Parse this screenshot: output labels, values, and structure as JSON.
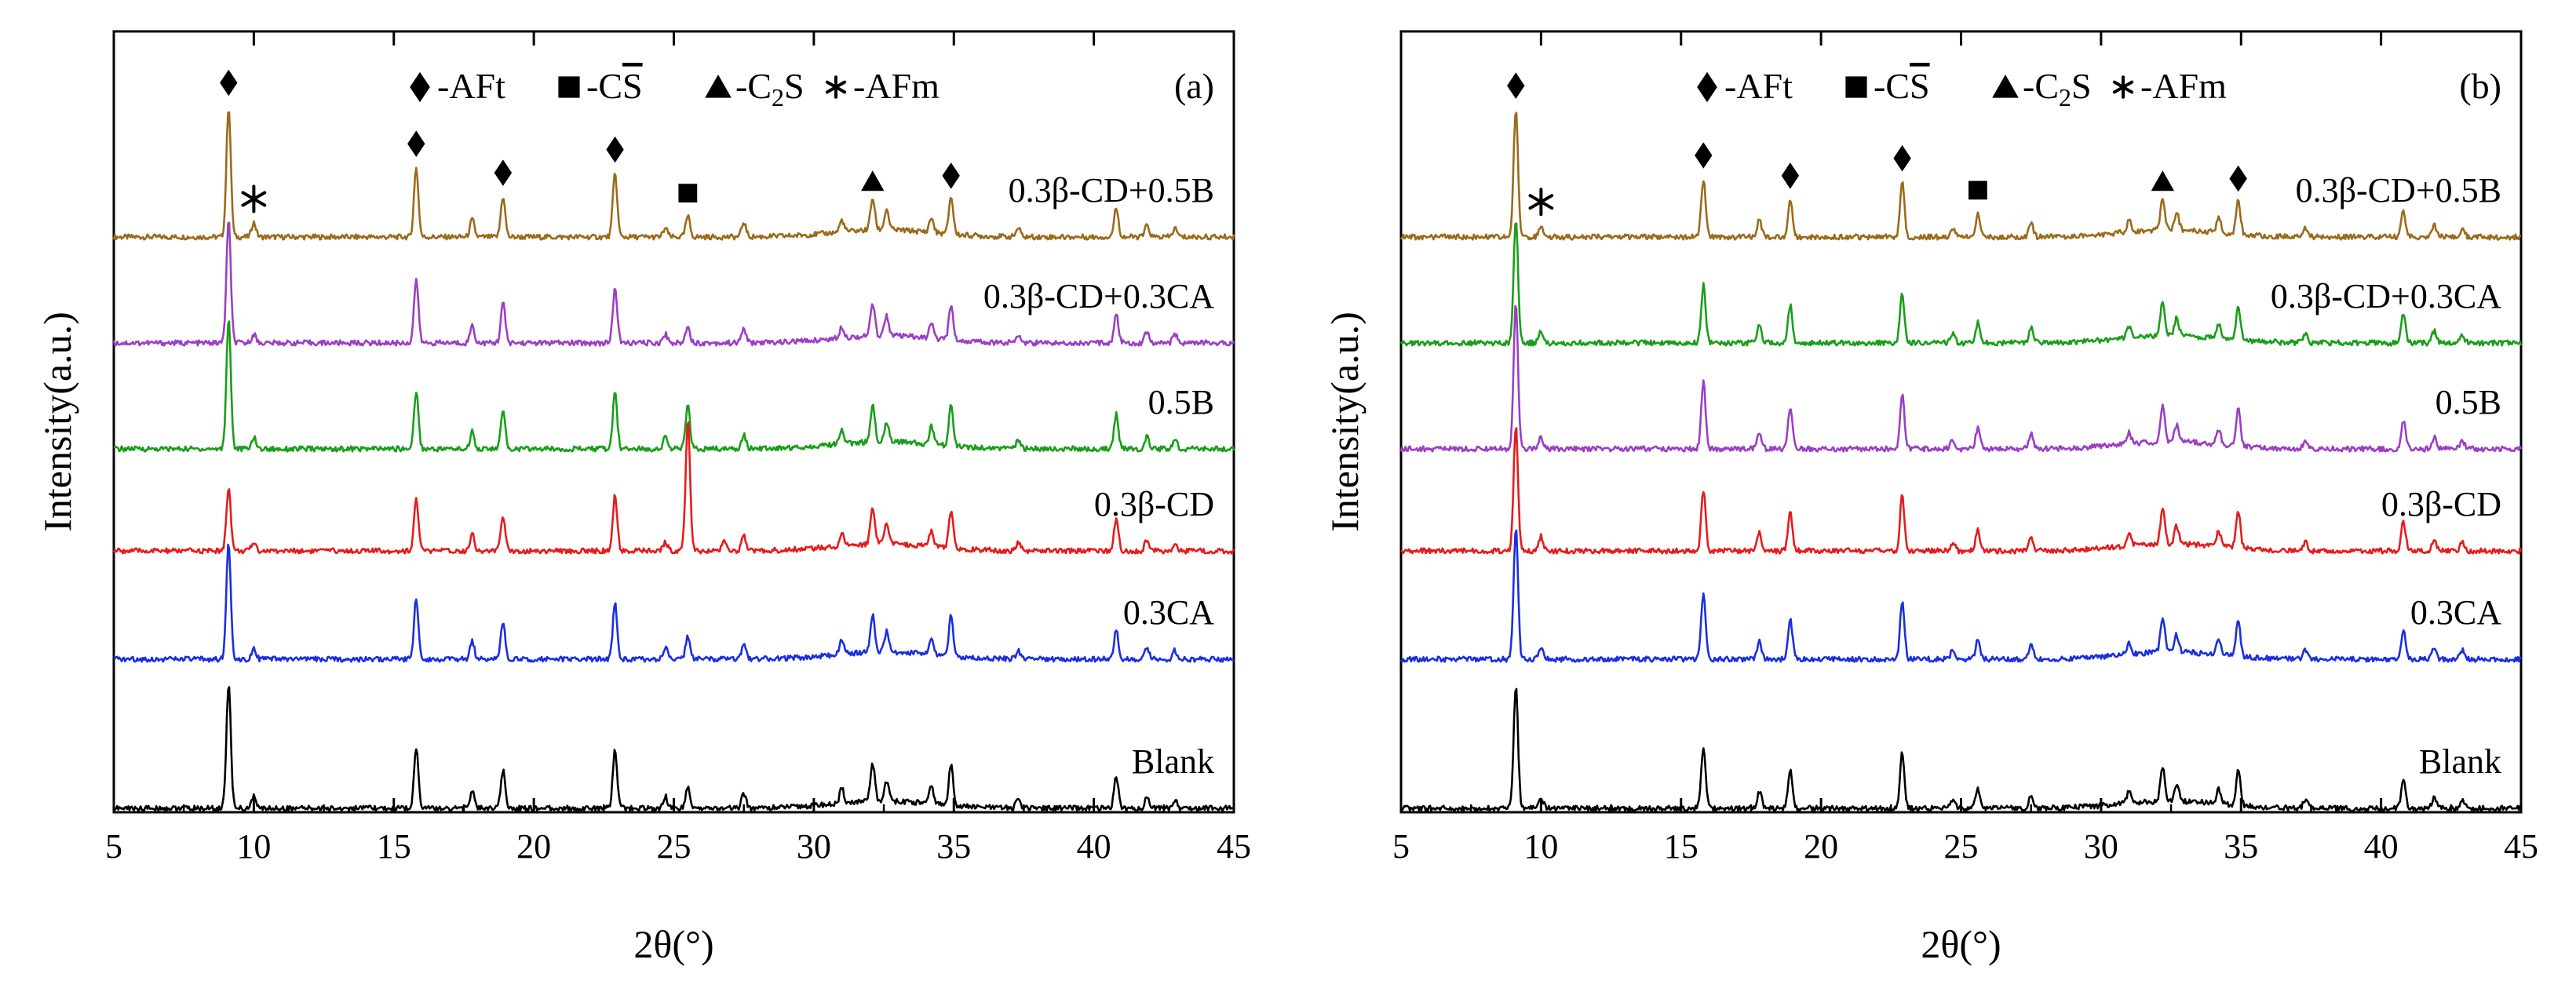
{
  "chart_data": [
    {
      "type": "line",
      "panel_label": "(a)",
      "xlabel": "2θ(°)",
      "ylabel": "Intensity(a.u.)",
      "xlim": [
        5,
        45
      ],
      "xticks": [
        5,
        10,
        15,
        20,
        25,
        30,
        35,
        40,
        45
      ],
      "y_ticks_shown": false,
      "legend": {
        "placement": "top-center",
        "entries": [
          {
            "marker": "diamond",
            "label": "-AFt"
          },
          {
            "marker": "square",
            "label": "-C",
            "overline": "S",
            "suffix": ""
          },
          {
            "marker": "triangle",
            "label": "-C",
            "sub": "2",
            "suffix": "S"
          },
          {
            "marker": "asterisk",
            "label": "-AFm"
          }
        ]
      },
      "series": [
        {
          "name": "0.3β-CD+0.5B",
          "color": "#9b6b1a",
          "baseline": 10.0,
          "peaks": [
            [
              9.1,
              4.5
            ],
            [
              10.0,
              0.5
            ],
            [
              15.8,
              2.4
            ],
            [
              17.8,
              0.6
            ],
            [
              18.9,
              1.4
            ],
            [
              22.9,
              2.2
            ],
            [
              24.7,
              0.3
            ],
            [
              25.5,
              0.7
            ],
            [
              27.5,
              0.5
            ],
            [
              31.0,
              0.4
            ],
            [
              32.1,
              1.1
            ],
            [
              32.6,
              0.7
            ],
            [
              34.2,
              0.5
            ],
            [
              34.9,
              1.3
            ],
            [
              37.3,
              0.3
            ],
            [
              40.8,
              1.0
            ],
            [
              41.9,
              0.4
            ],
            [
              42.9,
              0.3
            ]
          ]
        },
        {
          "name": "0.3β-CD+0.3CA",
          "color": "#9b3fc4",
          "baseline": 8.0,
          "peaks": [
            [
              9.1,
              4.2
            ],
            [
              10.0,
              0.3
            ],
            [
              15.8,
              2.2
            ],
            [
              17.8,
              0.6
            ],
            [
              18.9,
              1.4
            ],
            [
              22.9,
              1.9
            ],
            [
              24.7,
              0.3
            ],
            [
              25.5,
              0.6
            ],
            [
              27.5,
              0.5
            ],
            [
              31.0,
              0.4
            ],
            [
              32.1,
              1.1
            ],
            [
              32.6,
              0.7
            ],
            [
              34.2,
              0.5
            ],
            [
              34.9,
              1.2
            ],
            [
              37.3,
              0.3
            ],
            [
              40.8,
              1.0
            ],
            [
              41.9,
              0.4
            ],
            [
              42.9,
              0.3
            ]
          ]
        },
        {
          "name": "0.5B",
          "color": "#1a9e1a",
          "baseline": 6.0,
          "peaks": [
            [
              9.1,
              4.5
            ],
            [
              10.0,
              0.4
            ],
            [
              15.8,
              2.0
            ],
            [
              17.8,
              0.6
            ],
            [
              18.9,
              1.3
            ],
            [
              22.9,
              1.9
            ],
            [
              24.7,
              0.4
            ],
            [
              25.5,
              1.5
            ],
            [
              27.5,
              0.5
            ],
            [
              31.0,
              0.5
            ],
            [
              32.1,
              1.3
            ],
            [
              32.6,
              0.7
            ],
            [
              34.2,
              0.6
            ],
            [
              34.9,
              1.4
            ],
            [
              37.3,
              0.3
            ],
            [
              40.8,
              1.2
            ],
            [
              41.9,
              0.4
            ],
            [
              42.9,
              0.3
            ]
          ]
        },
        {
          "name": "0.3β-CD",
          "color": "#e51c1c",
          "baseline": 4.0,
          "peaks": [
            [
              9.1,
              2.2
            ],
            [
              10.0,
              0.3
            ],
            [
              15.8,
              1.8
            ],
            [
              17.8,
              0.6
            ],
            [
              18.9,
              1.2
            ],
            [
              22.9,
              1.9
            ],
            [
              24.7,
              0.3
            ],
            [
              25.5,
              4.5
            ],
            [
              26.8,
              0.4
            ],
            [
              27.5,
              0.5
            ],
            [
              31.0,
              0.4
            ],
            [
              32.1,
              1.3
            ],
            [
              32.6,
              0.7
            ],
            [
              34.2,
              0.5
            ],
            [
              34.9,
              1.3
            ],
            [
              37.3,
              0.3
            ],
            [
              40.8,
              1.1
            ],
            [
              41.9,
              0.4
            ],
            [
              42.9,
              0.3
            ]
          ]
        },
        {
          "name": "0.3CA",
          "color": "#1a2fe0",
          "baseline": 2.0,
          "peaks": [
            [
              9.1,
              4.0
            ],
            [
              10.0,
              0.4
            ],
            [
              15.8,
              2.1
            ],
            [
              17.8,
              0.6
            ],
            [
              18.9,
              1.3
            ],
            [
              22.9,
              1.9
            ],
            [
              24.7,
              0.4
            ],
            [
              25.5,
              0.8
            ],
            [
              27.5,
              0.5
            ],
            [
              31.0,
              0.5
            ],
            [
              32.1,
              1.3
            ],
            [
              32.6,
              0.7
            ],
            [
              34.2,
              0.6
            ],
            [
              34.9,
              1.4
            ],
            [
              37.3,
              0.3
            ],
            [
              40.8,
              1.0
            ],
            [
              41.9,
              0.4
            ],
            [
              42.9,
              0.3
            ]
          ]
        },
        {
          "name": "Blank",
          "color": "#000000",
          "baseline": 0.0,
          "peaks": [
            [
              9.1,
              4.3
            ],
            [
              10.0,
              0.4
            ],
            [
              15.8,
              2.1
            ],
            [
              17.8,
              0.6
            ],
            [
              18.9,
              1.3
            ],
            [
              22.9,
              2.0
            ],
            [
              24.7,
              0.4
            ],
            [
              25.5,
              0.7
            ],
            [
              27.5,
              0.5
            ],
            [
              31.0,
              0.5
            ],
            [
              32.1,
              1.3
            ],
            [
              32.6,
              0.7
            ],
            [
              34.2,
              0.6
            ],
            [
              34.9,
              1.4
            ],
            [
              37.3,
              0.3
            ],
            [
              40.8,
              1.1
            ],
            [
              41.9,
              0.4
            ],
            [
              42.9,
              0.3
            ]
          ]
        }
      ],
      "markers": [
        {
          "x": 9.1,
          "series": "0.3β-CD+0.5B",
          "type": "diamond"
        },
        {
          "x": 10.0,
          "series": "0.3β-CD+0.5B",
          "type": "asterisk"
        },
        {
          "x": 15.8,
          "series": "0.3β-CD+0.5B",
          "type": "diamond"
        },
        {
          "x": 18.9,
          "series": "0.3β-CD+0.5B",
          "type": "diamond"
        },
        {
          "x": 22.9,
          "series": "0.3β-CD+0.5B",
          "type": "diamond"
        },
        {
          "x": 25.5,
          "series": "0.3β-CD+0.5B",
          "type": "square"
        },
        {
          "x": 32.1,
          "series": "0.3β-CD+0.5B",
          "type": "triangle"
        },
        {
          "x": 34.9,
          "series": "0.3β-CD+0.5B",
          "type": "diamond"
        }
      ]
    },
    {
      "type": "line",
      "panel_label": "(b)",
      "xlabel": "2θ(°)",
      "ylabel": "Intensity(a.u.)",
      "xlim": [
        5,
        45
      ],
      "xticks": [
        5,
        10,
        15,
        20,
        25,
        30,
        35,
        40,
        45
      ],
      "y_ticks_shown": false,
      "legend": {
        "placement": "top-center",
        "entries": [
          {
            "marker": "diamond",
            "label": "-AFt"
          },
          {
            "marker": "square",
            "label": "-C",
            "overline": "S",
            "suffix": ""
          },
          {
            "marker": "triangle",
            "label": "-C",
            "sub": "2",
            "suffix": "S"
          },
          {
            "marker": "asterisk",
            "label": "-AFm"
          }
        ]
      },
      "series": [
        {
          "name": "0.3β-CD+0.5B",
          "color": "#9b6b1a",
          "baseline": 10.0,
          "peaks": [
            [
              9.1,
              4.4
            ],
            [
              10.0,
              0.4
            ],
            [
              15.8,
              2.0
            ],
            [
              17.8,
              0.6
            ],
            [
              18.9,
              1.3
            ],
            [
              22.9,
              1.9
            ],
            [
              24.7,
              0.3
            ],
            [
              25.6,
              0.8
            ],
            [
              27.5,
              0.5
            ],
            [
              31.0,
              0.4
            ],
            [
              32.2,
              1.1
            ],
            [
              32.7,
              0.6
            ],
            [
              34.2,
              0.5
            ],
            [
              34.9,
              1.2
            ],
            [
              37.3,
              0.3
            ],
            [
              40.8,
              0.9
            ],
            [
              41.9,
              0.4
            ],
            [
              42.9,
              0.3
            ]
          ]
        },
        {
          "name": "0.3β-CD+0.3CA",
          "color": "#1a9e1a",
          "baseline": 8.0,
          "peaks": [
            [
              9.1,
              4.3
            ],
            [
              10.0,
              0.4
            ],
            [
              15.8,
              2.0
            ],
            [
              17.8,
              0.6
            ],
            [
              18.9,
              1.3
            ],
            [
              22.9,
              1.7
            ],
            [
              24.7,
              0.3
            ],
            [
              25.6,
              0.7
            ],
            [
              27.5,
              0.5
            ],
            [
              31.0,
              0.4
            ],
            [
              32.2,
              1.2
            ],
            [
              32.7,
              0.6
            ],
            [
              34.2,
              0.5
            ],
            [
              34.9,
              1.2
            ],
            [
              37.3,
              0.3
            ],
            [
              40.8,
              1.0
            ],
            [
              41.9,
              0.4
            ],
            [
              42.9,
              0.3
            ]
          ]
        },
        {
          "name": "0.5B",
          "color": "#9b3fc4",
          "baseline": 6.0,
          "peaks": [
            [
              9.1,
              5.0
            ],
            [
              10.0,
              0.4
            ],
            [
              15.8,
              2.3
            ],
            [
              17.8,
              0.6
            ],
            [
              18.9,
              1.4
            ],
            [
              22.9,
              1.9
            ],
            [
              24.7,
              0.3
            ],
            [
              25.6,
              0.7
            ],
            [
              27.5,
              0.5
            ],
            [
              31.0,
              0.4
            ],
            [
              32.2,
              1.2
            ],
            [
              32.7,
              0.6
            ],
            [
              34.2,
              0.5
            ],
            [
              34.9,
              1.3
            ],
            [
              37.3,
              0.3
            ],
            [
              40.8,
              1.0
            ],
            [
              41.9,
              0.4
            ],
            [
              42.9,
              0.3
            ]
          ]
        },
        {
          "name": "0.3β-CD",
          "color": "#e51c1c",
          "baseline": 4.0,
          "peaks": [
            [
              9.1,
              4.3
            ],
            [
              10.0,
              0.5
            ],
            [
              15.8,
              2.1
            ],
            [
              17.8,
              0.6
            ],
            [
              18.9,
              1.3
            ],
            [
              22.9,
              1.9
            ],
            [
              24.7,
              0.3
            ],
            [
              25.6,
              0.7
            ],
            [
              27.5,
              0.5
            ],
            [
              31.0,
              0.4
            ],
            [
              32.2,
              1.2
            ],
            [
              32.7,
              0.6
            ],
            [
              34.2,
              0.5
            ],
            [
              34.9,
              1.3
            ],
            [
              37.3,
              0.3
            ],
            [
              40.8,
              1.0
            ],
            [
              41.9,
              0.4
            ],
            [
              42.9,
              0.3
            ]
          ]
        },
        {
          "name": "0.3CA",
          "color": "#1a2fe0",
          "baseline": 2.0,
          "peaks": [
            [
              9.1,
              4.5
            ],
            [
              10.0,
              0.4
            ],
            [
              15.8,
              2.3
            ],
            [
              17.8,
              0.6
            ],
            [
              18.9,
              1.4
            ],
            [
              22.9,
              2.0
            ],
            [
              24.7,
              0.3
            ],
            [
              25.6,
              0.7
            ],
            [
              27.5,
              0.5
            ],
            [
              31.0,
              0.4
            ],
            [
              32.2,
              1.2
            ],
            [
              32.7,
              0.6
            ],
            [
              34.2,
              0.5
            ],
            [
              34.9,
              1.2
            ],
            [
              37.3,
              0.3
            ],
            [
              40.8,
              1.0
            ],
            [
              41.9,
              0.4
            ],
            [
              42.9,
              0.3
            ]
          ]
        },
        {
          "name": "Blank",
          "color": "#000000",
          "baseline": 0.0,
          "peaks": [
            [
              9.1,
              4.2
            ],
            [
              10.0,
              0.4
            ],
            [
              15.8,
              2.1
            ],
            [
              17.8,
              0.6
            ],
            [
              18.9,
              1.3
            ],
            [
              22.9,
              1.9
            ],
            [
              24.7,
              0.3
            ],
            [
              25.6,
              0.7
            ],
            [
              27.5,
              0.5
            ],
            [
              31.0,
              0.4
            ],
            [
              32.2,
              1.2
            ],
            [
              32.7,
              0.6
            ],
            [
              34.2,
              0.5
            ],
            [
              34.9,
              1.2
            ],
            [
              37.3,
              0.3
            ],
            [
              40.8,
              1.0
            ],
            [
              41.9,
              0.4
            ],
            [
              42.9,
              0.3
            ]
          ]
        }
      ],
      "markers": [
        {
          "x": 9.1,
          "series": "0.3β-CD+0.5B",
          "type": "diamond"
        },
        {
          "x": 10.0,
          "series": "0.3β-CD+0.5B",
          "type": "asterisk"
        },
        {
          "x": 15.8,
          "series": "0.3β-CD+0.5B",
          "type": "diamond"
        },
        {
          "x": 18.9,
          "series": "0.3β-CD+0.5B",
          "type": "diamond"
        },
        {
          "x": 22.9,
          "series": "0.3β-CD+0.5B",
          "type": "diamond"
        },
        {
          "x": 25.6,
          "series": "0.3β-CD+0.5B",
          "type": "square"
        },
        {
          "x": 32.2,
          "series": "0.3β-CD+0.5B",
          "type": "triangle"
        },
        {
          "x": 34.9,
          "series": "0.3β-CD+0.5B",
          "type": "diamond"
        }
      ]
    }
  ]
}
